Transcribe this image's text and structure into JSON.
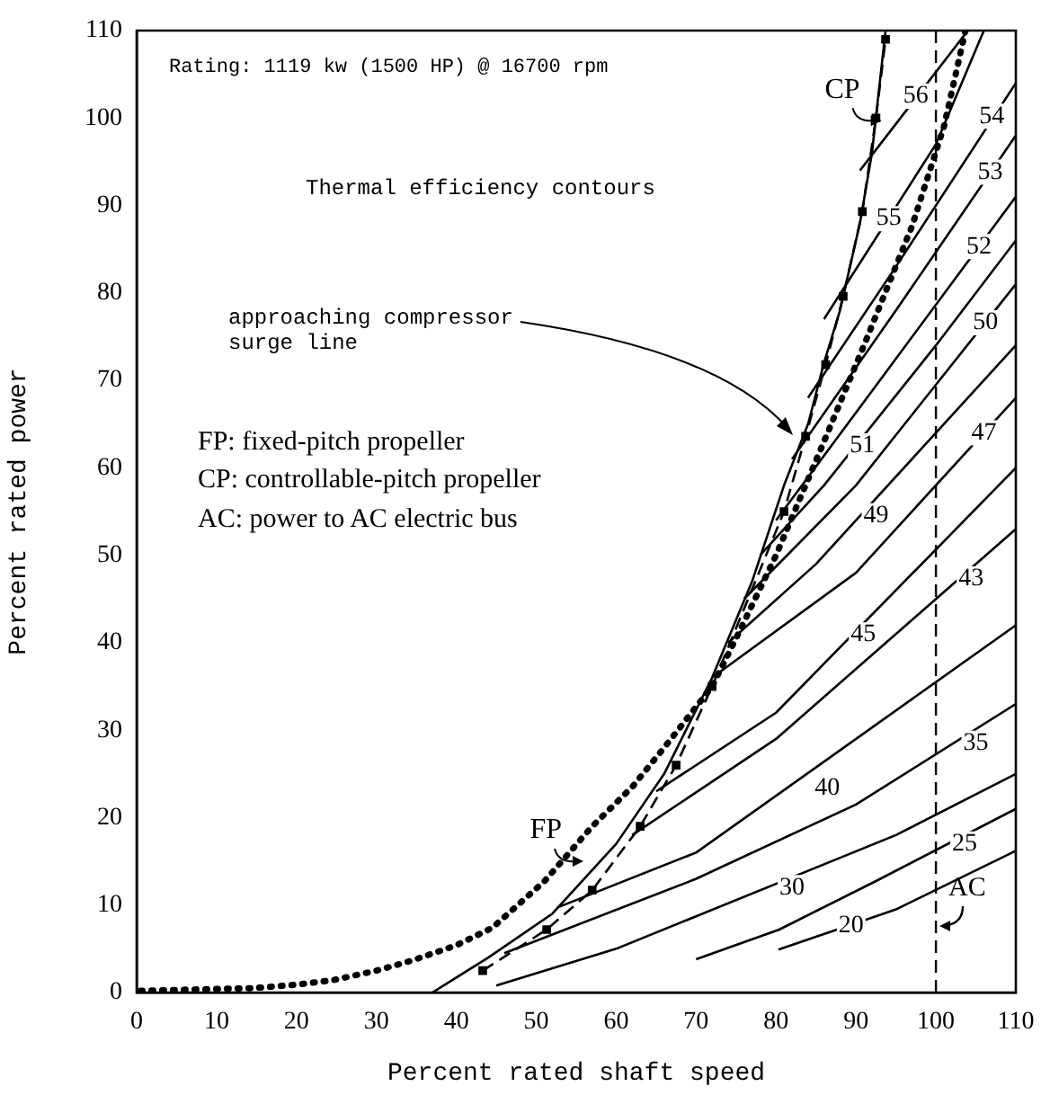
{
  "chart_data": {
    "type": "line",
    "xlabel": "Percent rated shaft speed",
    "ylabel": "Percent rated power",
    "xlim": [
      0,
      110
    ],
    "xticks": [
      0,
      10,
      20,
      30,
      40,
      50,
      60,
      70,
      80,
      90,
      100,
      110
    ],
    "ylim": [
      0,
      110
    ],
    "yticks": [
      0,
      10,
      20,
      30,
      40,
      50,
      60,
      70,
      80,
      90,
      100,
      110
    ],
    "grid": false,
    "legend": false,
    "series": [
      {
        "color": "#000000",
        "line_style": "dotted",
        "marker": "none",
        "x": [
          0.5,
          5,
          10,
          14.6,
          20,
          24.5,
          30,
          34.6,
          40,
          44.5,
          51,
          57,
          62,
          66,
          72,
          75,
          80,
          85.4,
          91,
          97,
          101,
          103.7
        ],
        "values": [
          0.2,
          0.3,
          0.4,
          0.5,
          0.9,
          1.4,
          2.5,
          3.7,
          5.4,
          7.4,
          12.7,
          19,
          23.5,
          28,
          35,
          40.5,
          50,
          61.7,
          74,
          87.6,
          99,
          110
        ]
      },
      {
        "color": "#000000",
        "line_style": "dashed",
        "marker": "square",
        "x": [
          43.3,
          51.3,
          57,
          63,
          67.5,
          72,
          81,
          83.7,
          86.2,
          88.4,
          90.8,
          92.5,
          93.7
        ],
        "values": [
          2.5,
          7.2,
          11.7,
          19,
          26,
          35,
          55,
          63.6,
          71.8,
          79.6,
          89.3,
          100,
          109
        ]
      },
      {
        "color": "#000000",
        "line_style": "solid",
        "marker": "none",
        "x": [
          37,
          44,
          52,
          60,
          66,
          72,
          77,
          81,
          84,
          86,
          88,
          90.5,
          92,
          93.7
        ],
        "values": [
          0,
          4,
          9,
          17,
          25,
          36,
          47,
          58,
          65,
          72,
          78,
          88,
          96,
          110
        ]
      },
      {
        "color": "#000000",
        "line_style": "solid",
        "marker": "none",
        "x": [
          90.5,
          104
        ],
        "values": [
          94,
          110
        ]
      },
      {
        "color": "#000000",
        "line_style": "solid",
        "marker": "none",
        "x": [
          86,
          100,
          106
        ],
        "values": [
          77,
          97,
          110
        ]
      },
      {
        "color": "#000000",
        "line_style": "solid",
        "marker": "none",
        "x": [
          84,
          95,
          110
        ],
        "values": [
          68,
          83,
          104
        ]
      },
      {
        "color": "#000000",
        "line_style": "solid",
        "marker": "none",
        "x": [
          82,
          95,
          110
        ],
        "values": [
          61,
          78,
          98
        ]
      },
      {
        "color": "#000000",
        "line_style": "solid",
        "marker": "none",
        "x": [
          80,
          93,
          110
        ],
        "values": [
          54,
          70,
          91
        ]
      },
      {
        "color": "#000000",
        "line_style": "solid",
        "marker": "none",
        "x": [
          78,
          86,
          100,
          110
        ],
        "values": [
          50,
          58,
          74,
          86
        ]
      },
      {
        "color": "#000000",
        "line_style": "solid",
        "marker": "none",
        "x": [
          76,
          90,
          110
        ],
        "values": [
          45,
          58,
          81
        ]
      },
      {
        "color": "#000000",
        "line_style": "solid",
        "marker": "none",
        "x": [
          74,
          85,
          110
        ],
        "values": [
          40,
          49,
          74
        ]
      },
      {
        "color": "#000000",
        "line_style": "solid",
        "marker": "none",
        "x": [
          72,
          90,
          110
        ],
        "values": [
          36,
          48,
          68
        ]
      },
      {
        "color": "#000000",
        "line_style": "solid",
        "marker": "none",
        "x": [
          65,
          80,
          110
        ],
        "values": [
          23,
          32,
          60
        ]
      },
      {
        "color": "#000000",
        "line_style": "solid",
        "marker": "none",
        "x": [
          62,
          80,
          110
        ],
        "values": [
          18,
          29,
          53
        ]
      },
      {
        "color": "#000000",
        "line_style": "solid",
        "marker": "none",
        "x": [
          52.6,
          70,
          110
        ],
        "values": [
          9.7,
          16,
          42
        ]
      },
      {
        "color": "#000000",
        "line_style": "solid",
        "marker": "none",
        "x": [
          46,
          70,
          90,
          110
        ],
        "values": [
          4.5,
          13,
          21.5,
          33
        ]
      },
      {
        "color": "#000000",
        "line_style": "solid",
        "marker": "none",
        "x": [
          45,
          60,
          95,
          110
        ],
        "values": [
          0.8,
          5,
          18,
          25
        ]
      },
      {
        "color": "#000000",
        "line_style": "solid",
        "marker": "none",
        "x": [
          70,
          80.4,
          92.4,
          110
        ],
        "values": [
          3.8,
          7.2,
          12.7,
          21
        ]
      },
      {
        "color": "#000000",
        "line_style": "solid",
        "marker": "none",
        "x": [
          80.3,
          95,
          110
        ],
        "values": [
          4.9,
          9.5,
          16.2
        ]
      }
    ],
    "ref_lines": [
      {
        "axis": "x",
        "value": 100,
        "label": "AC",
        "line_style": "dashed",
        "color": "#000000"
      }
    ],
    "annotations": [
      "Rating: 1119 kw (1500 HP) @ 16700 rpm",
      "Thermal efficiency contours",
      "approaching compressor\nsurge line",
      "FP: fixed-pitch propeller",
      "CP: controllable-pitch propeller",
      "AC: power to AC electric bus",
      {
        "text": "CP",
        "x": 88.3,
        "y": 103.2
      },
      {
        "text": "FP",
        "x": 51.2,
        "y": 18.5
      },
      {
        "text": "56",
        "x": 97.5,
        "y": 102.5
      },
      {
        "text": "55",
        "x": 94.1,
        "y": 88.5
      },
      {
        "text": "54",
        "x": 107,
        "y": 100.2
      },
      {
        "text": "53",
        "x": 106.8,
        "y": 93.8
      },
      {
        "text": "52",
        "x": 105.4,
        "y": 85.3
      },
      {
        "text": "51",
        "x": 90.8,
        "y": 62.5
      },
      {
        "text": "50",
        "x": 106.2,
        "y": 76.6
      },
      {
        "text": "49",
        "x": 92.5,
        "y": 54.5
      },
      {
        "text": "47",
        "x": 106,
        "y": 64
      },
      {
        "text": "45",
        "x": 90.9,
        "y": 40.9
      },
      {
        "text": "43",
        "x": 104.4,
        "y": 47.3
      },
      {
        "text": "40",
        "x": 86.4,
        "y": 23.4
      },
      {
        "text": "35",
        "x": 105,
        "y": 28.5
      },
      {
        "text": "30",
        "x": 82,
        "y": 12
      },
      {
        "text": "25",
        "x": 103.6,
        "y": 17
      },
      {
        "text": "20",
        "x": 89.4,
        "y": 7.6
      }
    ]
  }
}
